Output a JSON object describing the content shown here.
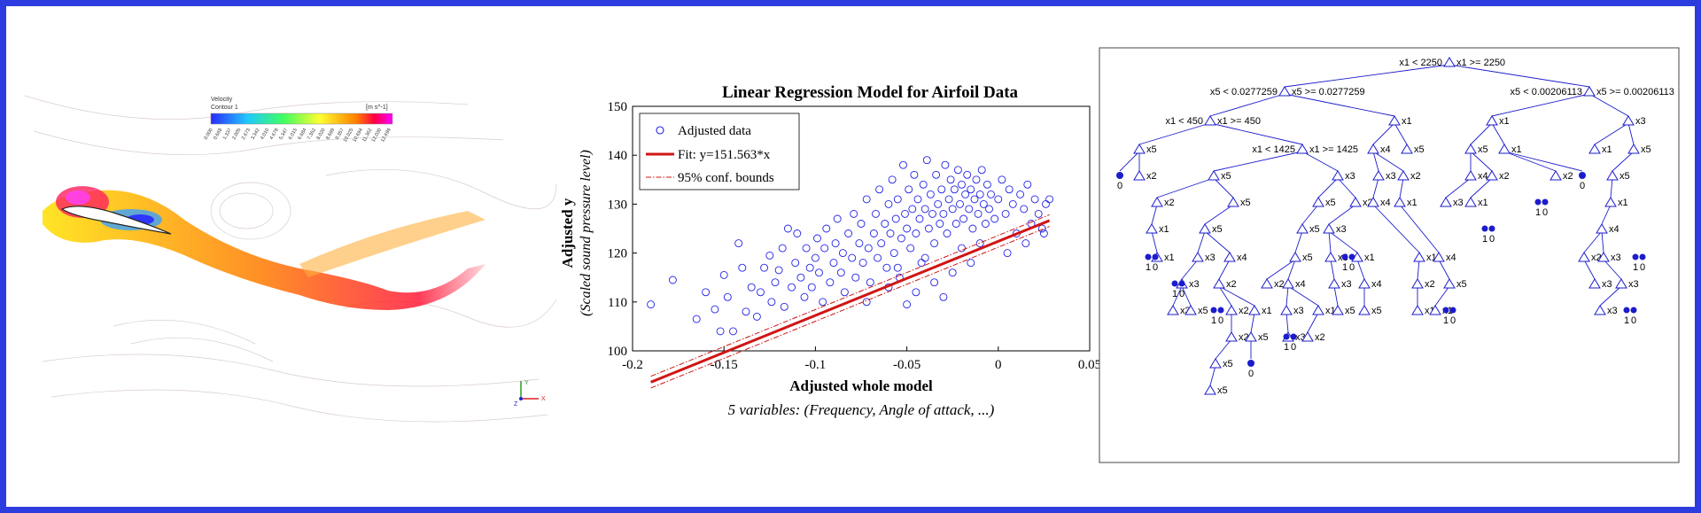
{
  "colors": {
    "frame": "#2d3cdf",
    "points": "#2323e6",
    "fit": "#d11414",
    "tree": "#1c1ccc"
  },
  "cfd": {
    "colorbar_title": "Velocity",
    "colorbar_subtitle": "Contour 1",
    "colorbar_unit": "[m s^-1]",
    "colorbar_ticks": [
      "0.000",
      "0.668",
      "1.337",
      "2.005",
      "2.673",
      "3.342",
      "4.010",
      "4.678",
      "5.347",
      "6.015",
      "6.684",
      "7.352",
      "8.020",
      "8.689",
      "9.357",
      "10.025",
      "10.694",
      "11.362",
      "12.030",
      "12.699"
    ],
    "axis_labels": [
      "Y",
      "X",
      "Z"
    ]
  },
  "chart_data": {
    "type": "scatter",
    "title": "Linear Regression Model for Airfoil Data",
    "xlabel": "Adjusted whole model",
    "ylabel": "Adjusted y",
    "ylabel_sub": "(Scaled sound pressure level)",
    "subtitle": "5 variables: (Frequency, Angle of attack, ...)",
    "xlim": [
      -0.2,
      0.05
    ],
    "ylim": [
      100,
      150
    ],
    "xticks": [
      "-0.2",
      "-0.15",
      "-0.1",
      "-0.05",
      "0",
      "0.05"
    ],
    "yticks": [
      "100",
      "110",
      "120",
      "130",
      "140",
      "150"
    ],
    "legend_position": "top-left",
    "legend": [
      "Adjusted data",
      "Fit: y=151.563*x",
      "95% conf. bounds"
    ],
    "fit": {
      "slope": 151.563,
      "intercept": 122.4,
      "x_range": [
        -0.19,
        0.028
      ],
      "conf_halfwidth": 1.2
    },
    "series": [
      {
        "name": "Adjusted data",
        "points": [
          [
            -0.19,
            109.5
          ],
          [
            -0.178,
            114.5
          ],
          [
            -0.165,
            106.5
          ],
          [
            -0.16,
            112
          ],
          [
            -0.155,
            108.5
          ],
          [
            -0.152,
            104
          ],
          [
            -0.15,
            115.5
          ],
          [
            -0.148,
            111
          ],
          [
            -0.145,
            104
          ],
          [
            -0.142,
            122
          ],
          [
            -0.14,
            117
          ],
          [
            -0.138,
            108
          ],
          [
            -0.135,
            113
          ],
          [
            -0.132,
            107
          ],
          [
            -0.13,
            112
          ],
          [
            -0.128,
            117
          ],
          [
            -0.125,
            119.5
          ],
          [
            -0.124,
            110
          ],
          [
            -0.122,
            114
          ],
          [
            -0.12,
            116.5
          ],
          [
            -0.118,
            121
          ],
          [
            -0.117,
            109
          ],
          [
            -0.115,
            125
          ],
          [
            -0.113,
            113
          ],
          [
            -0.111,
            118
          ],
          [
            -0.11,
            124
          ],
          [
            -0.108,
            115
          ],
          [
            -0.106,
            111
          ],
          [
            -0.105,
            121
          ],
          [
            -0.103,
            117
          ],
          [
            -0.102,
            113
          ],
          [
            -0.1,
            119
          ],
          [
            -0.099,
            123
          ],
          [
            -0.098,
            116
          ],
          [
            -0.096,
            110
          ],
          [
            -0.095,
            121
          ],
          [
            -0.094,
            125
          ],
          [
            -0.092,
            114
          ],
          [
            -0.09,
            118
          ],
          [
            -0.089,
            122
          ],
          [
            -0.088,
            127
          ],
          [
            -0.086,
            116
          ],
          [
            -0.085,
            120
          ],
          [
            -0.084,
            112
          ],
          [
            -0.082,
            124
          ],
          [
            -0.08,
            119
          ],
          [
            -0.079,
            128
          ],
          [
            -0.078,
            115
          ],
          [
            -0.076,
            122
          ],
          [
            -0.075,
            126
          ],
          [
            -0.074,
            118
          ],
          [
            -0.072,
            131
          ],
          [
            -0.071,
            121
          ],
          [
            -0.07,
            114
          ],
          [
            -0.068,
            124
          ],
          [
            -0.067,
            128
          ],
          [
            -0.066,
            119
          ],
          [
            -0.065,
            133
          ],
          [
            -0.064,
            122
          ],
          [
            -0.062,
            126
          ],
          [
            -0.061,
            117
          ],
          [
            -0.06,
            130
          ],
          [
            -0.059,
            124
          ],
          [
            -0.058,
            135
          ],
          [
            -0.057,
            120
          ],
          [
            -0.056,
            127
          ],
          [
            -0.055,
            131
          ],
          [
            -0.054,
            115
          ],
          [
            -0.053,
            123
          ],
          [
            -0.052,
            138
          ],
          [
            -0.051,
            128
          ],
          [
            -0.05,
            125
          ],
          [
            -0.049,
            133
          ],
          [
            -0.048,
            121
          ],
          [
            -0.047,
            129
          ],
          [
            -0.046,
            136
          ],
          [
            -0.045,
            124
          ],
          [
            -0.044,
            131
          ],
          [
            -0.043,
            127
          ],
          [
            -0.042,
            118
          ],
          [
            -0.041,
            134
          ],
          [
            -0.04,
            129
          ],
          [
            -0.039,
            139
          ],
          [
            -0.038,
            125
          ],
          [
            -0.037,
            132
          ],
          [
            -0.036,
            128
          ],
          [
            -0.035,
            122
          ],
          [
            -0.034,
            136
          ],
          [
            -0.033,
            130
          ],
          [
            -0.032,
            126
          ],
          [
            -0.031,
            133
          ],
          [
            -0.03,
            128
          ],
          [
            -0.029,
            138
          ],
          [
            -0.028,
            124
          ],
          [
            -0.027,
            131
          ],
          [
            -0.026,
            135
          ],
          [
            -0.025,
            129
          ],
          [
            -0.024,
            133
          ],
          [
            -0.023,
            126
          ],
          [
            -0.022,
            137
          ],
          [
            -0.021,
            130
          ],
          [
            -0.02,
            134
          ],
          [
            -0.019,
            127
          ],
          [
            -0.018,
            132
          ],
          [
            -0.017,
            136
          ],
          [
            -0.016,
            129
          ],
          [
            -0.015,
            133
          ],
          [
            -0.014,
            125
          ],
          [
            -0.013,
            131
          ],
          [
            -0.012,
            135
          ],
          [
            -0.011,
            128
          ],
          [
            -0.01,
            132
          ],
          [
            -0.009,
            137
          ],
          [
            -0.008,
            130
          ],
          [
            -0.007,
            126
          ],
          [
            -0.006,
            134
          ],
          [
            -0.005,
            129
          ],
          [
            -0.004,
            132
          ],
          [
            -0.002,
            127
          ],
          [
            0.0,
            131
          ],
          [
            0.002,
            135
          ],
          [
            0.004,
            128
          ],
          [
            0.006,
            133
          ],
          [
            0.008,
            130
          ],
          [
            0.01,
            124
          ],
          [
            0.012,
            132
          ],
          [
            0.014,
            129
          ],
          [
            0.016,
            134
          ],
          [
            0.018,
            126
          ],
          [
            0.02,
            131
          ],
          [
            0.022,
            128
          ],
          [
            0.024,
            125
          ],
          [
            0.026,
            130
          ],
          [
            0.028,
            131
          ],
          [
            -0.072,
            110
          ],
          [
            -0.045,
            112
          ],
          [
            -0.05,
            109.5
          ],
          [
            -0.035,
            114
          ],
          [
            -0.03,
            111
          ],
          [
            -0.06,
            113
          ],
          [
            -0.025,
            116
          ],
          [
            -0.015,
            118
          ],
          [
            -0.02,
            121
          ],
          [
            0.005,
            120
          ],
          [
            -0.01,
            122
          ],
          [
            -0.055,
            117
          ],
          [
            -0.04,
            119
          ],
          [
            0.015,
            122
          ],
          [
            0.025,
            124
          ]
        ]
      }
    ]
  },
  "tree": {
    "nodes": [
      {
        "id": "r",
        "pos": "root",
        "left": "x1 < 2250",
        "right": "x1 >= 2250"
      },
      {
        "id": "a",
        "left": "x5 < 0.0277259",
        "right": "x5 >= 0.0277259"
      },
      {
        "id": "b",
        "left": "x5 < 0.00206113",
        "right": "x5 >= 0.00206113"
      },
      {
        "id": "c",
        "left": "x1 < 450",
        "right": "x1 >= 450"
      },
      {
        "id": "d",
        "left": "x1 < 1425",
        "right": "x1 >= 1425"
      }
    ],
    "labels": [
      "x5",
      "x2",
      "x1",
      "x4",
      "x3"
    ],
    "leaves": [
      "0",
      "1",
      "0"
    ]
  }
}
